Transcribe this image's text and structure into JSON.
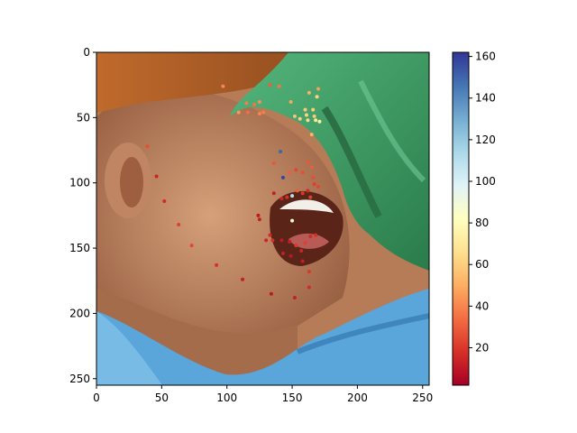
{
  "chart_data": {
    "type": "scatter",
    "background": "image-heatmap",
    "image_description_colors": {
      "hat_brim": "#b8652a",
      "hat_green": "#3f9a63",
      "skin": "#c88d66",
      "shirt": "#5aa6da",
      "mouth_dark": "#5a2418"
    },
    "x_ticks": [
      0,
      50,
      100,
      150,
      200,
      250
    ],
    "y_ticks": [
      0,
      50,
      100,
      150,
      200,
      250
    ],
    "xlim": [
      0,
      255
    ],
    "ylim": [
      255,
      0
    ],
    "colorbar": {
      "ticks": [
        20,
        40,
        60,
        80,
        100,
        120,
        140,
        160
      ],
      "range": [
        2,
        162
      ],
      "colormap": "RdYlBu",
      "stops": [
        "#a50026",
        "#d73027",
        "#f46d43",
        "#fdae61",
        "#fee090",
        "#ffffbf",
        "#e0f3f8",
        "#abd9e9",
        "#74add1",
        "#4575b4",
        "#313695"
      ]
    },
    "points": [
      {
        "x": 97,
        "y": 26,
        "v": 40
      },
      {
        "x": 109,
        "y": 46,
        "v": 44
      },
      {
        "x": 115,
        "y": 39,
        "v": 38
      },
      {
        "x": 116,
        "y": 46,
        "v": 34
      },
      {
        "x": 121,
        "y": 40,
        "v": 36
      },
      {
        "x": 125,
        "y": 38,
        "v": 42
      },
      {
        "x": 125,
        "y": 47,
        "v": 40
      },
      {
        "x": 128,
        "y": 46,
        "v": 38
      },
      {
        "x": 149,
        "y": 38,
        "v": 48
      },
      {
        "x": 152,
        "y": 49,
        "v": 56
      },
      {
        "x": 156,
        "y": 51,
        "v": 60
      },
      {
        "x": 160,
        "y": 44,
        "v": 58
      },
      {
        "x": 161,
        "y": 48,
        "v": 62
      },
      {
        "x": 162,
        "y": 52,
        "v": 64
      },
      {
        "x": 163,
        "y": 31,
        "v": 50
      },
      {
        "x": 165,
        "y": 63,
        "v": 52
      },
      {
        "x": 166,
        "y": 44,
        "v": 60
      },
      {
        "x": 167,
        "y": 49,
        "v": 58
      },
      {
        "x": 168,
        "y": 52,
        "v": 70
      },
      {
        "x": 169,
        "y": 34,
        "v": 62
      },
      {
        "x": 170,
        "y": 28,
        "v": 46
      },
      {
        "x": 171,
        "y": 53,
        "v": 72
      },
      {
        "x": 140,
        "y": 26,
        "v": 36
      },
      {
        "x": 133,
        "y": 25,
        "v": 30
      },
      {
        "x": 39,
        "y": 72,
        "v": 26
      },
      {
        "x": 46,
        "y": 95,
        "v": 14
      },
      {
        "x": 52,
        "y": 114,
        "v": 16
      },
      {
        "x": 63,
        "y": 132,
        "v": 22
      },
      {
        "x": 73,
        "y": 148,
        "v": 24
      },
      {
        "x": 92,
        "y": 163,
        "v": 18
      },
      {
        "x": 112,
        "y": 174,
        "v": 12
      },
      {
        "x": 134,
        "y": 185,
        "v": 10
      },
      {
        "x": 136,
        "y": 85,
        "v": 28
      },
      {
        "x": 141,
        "y": 76,
        "v": 150
      },
      {
        "x": 143,
        "y": 96,
        "v": 158
      },
      {
        "x": 148,
        "y": 92,
        "v": 30
      },
      {
        "x": 153,
        "y": 90,
        "v": 24
      },
      {
        "x": 158,
        "y": 92,
        "v": 26
      },
      {
        "x": 162,
        "y": 84,
        "v": 28
      },
      {
        "x": 165,
        "y": 88,
        "v": 30
      },
      {
        "x": 166,
        "y": 96,
        "v": 26
      },
      {
        "x": 167,
        "y": 101,
        "v": 22
      },
      {
        "x": 170,
        "y": 103,
        "v": 24
      },
      {
        "x": 162,
        "y": 106,
        "v": 16
      },
      {
        "x": 158,
        "y": 108,
        "v": 20
      },
      {
        "x": 154,
        "y": 106,
        "v": 30
      },
      {
        "x": 150,
        "y": 110,
        "v": 110
      },
      {
        "x": 146,
        "y": 111,
        "v": 18
      },
      {
        "x": 142,
        "y": 112,
        "v": 14
      },
      {
        "x": 136,
        "y": 108,
        "v": 12
      },
      {
        "x": 124,
        "y": 125,
        "v": 10
      },
      {
        "x": 125,
        "y": 128,
        "v": 12
      },
      {
        "x": 133,
        "y": 140,
        "v": 16
      },
      {
        "x": 135,
        "y": 144,
        "v": 18
      },
      {
        "x": 142,
        "y": 144,
        "v": 10
      },
      {
        "x": 148,
        "y": 145,
        "v": 12
      },
      {
        "x": 153,
        "y": 148,
        "v": 20
      },
      {
        "x": 157,
        "y": 152,
        "v": 14
      },
      {
        "x": 160,
        "y": 146,
        "v": 22
      },
      {
        "x": 164,
        "y": 141,
        "v": 16
      },
      {
        "x": 168,
        "y": 140,
        "v": 18
      },
      {
        "x": 150,
        "y": 129,
        "v": 86
      },
      {
        "x": 143,
        "y": 154,
        "v": 12
      },
      {
        "x": 149,
        "y": 156,
        "v": 10
      },
      {
        "x": 158,
        "y": 160,
        "v": 12
      },
      {
        "x": 163,
        "y": 168,
        "v": 20
      },
      {
        "x": 163,
        "y": 180,
        "v": 16
      },
      {
        "x": 152,
        "y": 188,
        "v": 12
      },
      {
        "x": 130,
        "y": 144,
        "v": 14
      },
      {
        "x": 164,
        "y": 111,
        "v": 22
      }
    ]
  }
}
